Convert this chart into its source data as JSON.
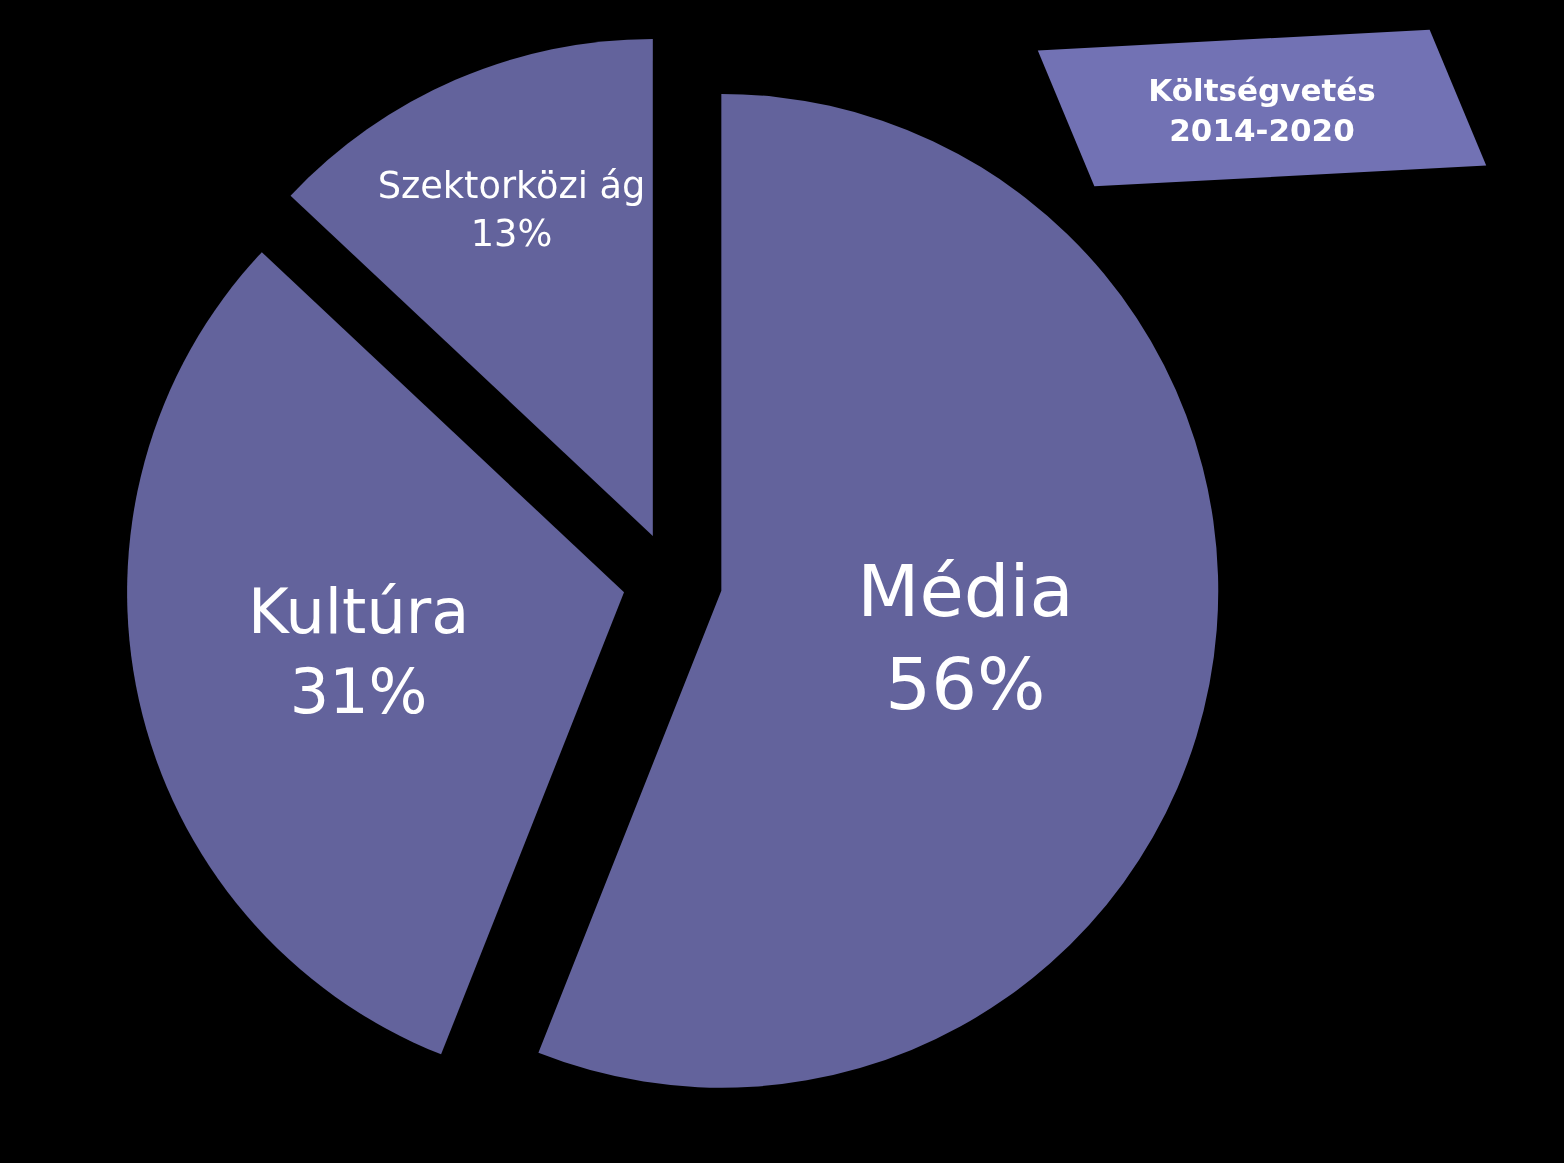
{
  "chart_data": {
    "type": "pie",
    "title": "Költségvetés 2014-2020",
    "categories": [
      "Média",
      "Kultúra",
      "Szektorközi ág"
    ],
    "values": [
      56,
      31,
      13
    ],
    "value_labels": [
      "56%",
      "31%",
      "13%"
    ],
    "colors": [
      "#63639c",
      "#63639c",
      "#63639c"
    ],
    "legend": false
  }
}
